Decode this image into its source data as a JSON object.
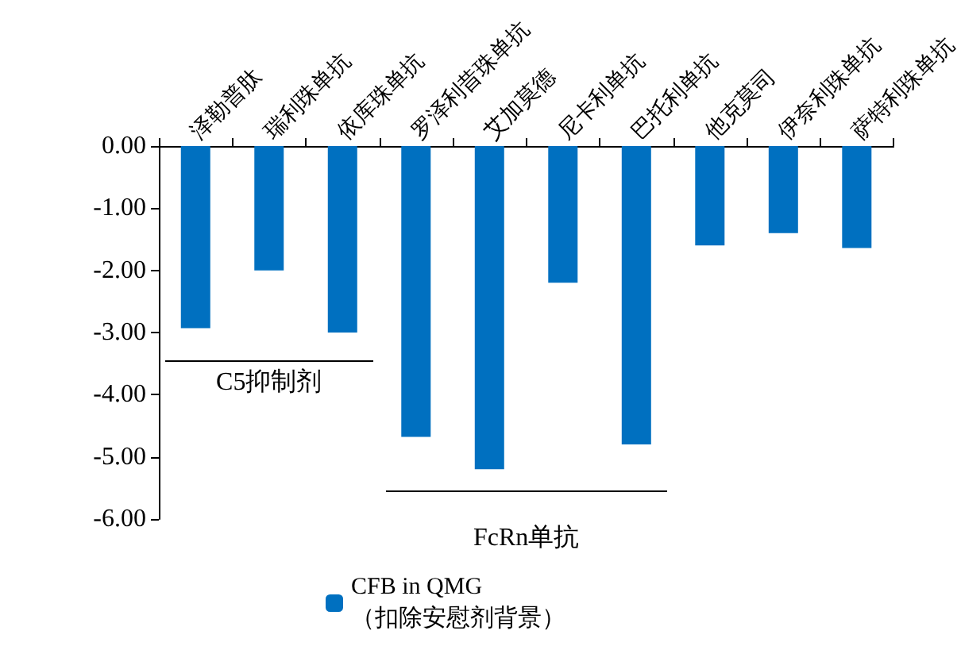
{
  "chart_data": {
    "type": "bar",
    "categories": [
      "泽勒普肽",
      "瑞利珠单抗",
      "依库珠单抗",
      "罗泽利昔珠单抗",
      "艾加莫德",
      "尼卡利单抗",
      "巴托利单抗",
      "他克莫司",
      "伊奈利珠单抗",
      "萨特利珠单抗"
    ],
    "series": [
      {
        "name": "CFB in QMG\n（扣除安慰剂背景）",
        "color": "#0070c0",
        "values": [
          -2.93,
          -2.0,
          -3.0,
          -4.68,
          -5.2,
          -2.2,
          -4.8,
          -1.6,
          -1.4,
          -1.64
        ]
      }
    ],
    "ylim": [
      -6,
      0
    ],
    "yticks": [
      {
        "value": -6,
        "label": "-6.00"
      },
      {
        "value": -5,
        "label": "-5.00"
      },
      {
        "value": -4,
        "label": "-4.00"
      },
      {
        "value": -3,
        "label": "-3.00"
      },
      {
        "value": -2,
        "label": "-2.00"
      },
      {
        "value": -1,
        "label": "-1.00"
      },
      {
        "value": 0,
        "label": "0.00"
      }
    ],
    "annotations": [
      "C5抑制剂",
      "FcRn单抗"
    ],
    "grid": false,
    "legend": "bottom"
  }
}
